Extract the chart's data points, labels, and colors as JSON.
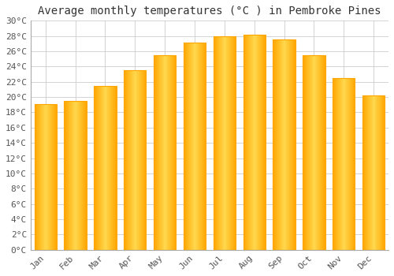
{
  "months": [
    "Jan",
    "Feb",
    "Mar",
    "Apr",
    "May",
    "Jun",
    "Jul",
    "Aug",
    "Sep",
    "Oct",
    "Nov",
    "Dec"
  ],
  "temperatures": [
    19.1,
    19.5,
    21.5,
    23.5,
    25.5,
    27.1,
    28.0,
    28.2,
    27.5,
    25.5,
    22.5,
    20.2
  ],
  "bar_color_center": "#FFD84D",
  "bar_color_edge": "#FFA500",
  "title": "Average monthly temperatures (°C ) in Pembroke Pines",
  "ylim": [
    0,
    30
  ],
  "ytick_step": 2,
  "background_color": "#ffffff",
  "grid_color": "#cccccc",
  "title_fontsize": 10,
  "tick_fontsize": 8,
  "font_family": "monospace",
  "tick_color": "#555555"
}
